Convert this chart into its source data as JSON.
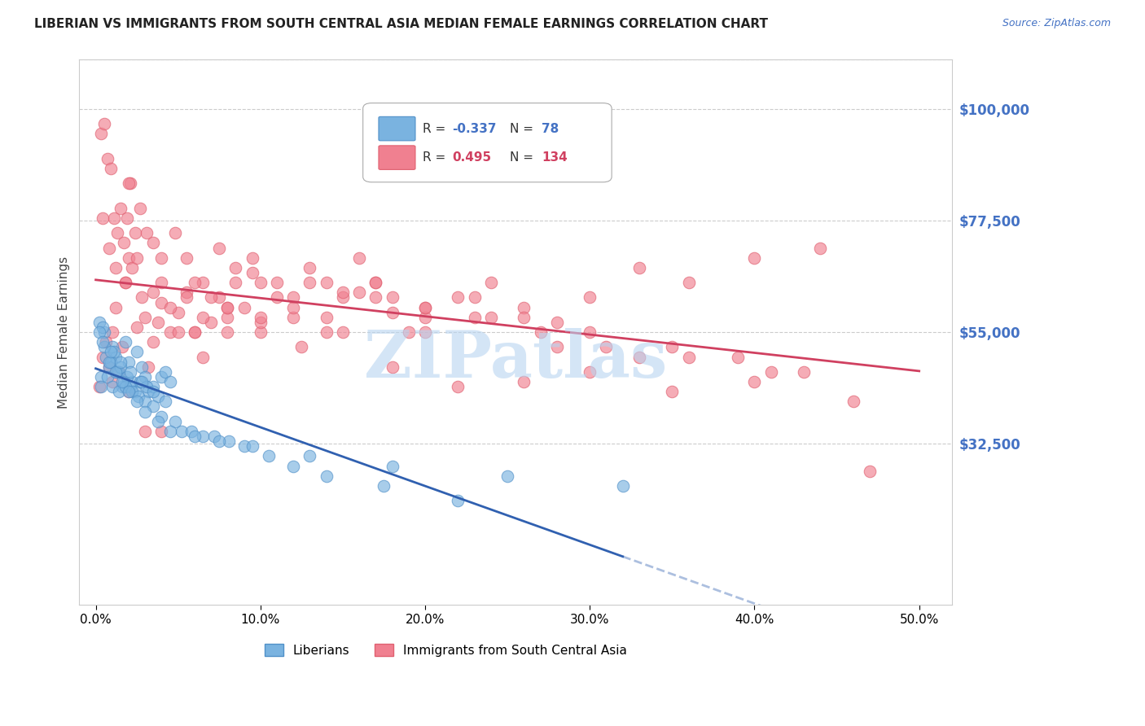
{
  "title": "LIBERIAN VS IMMIGRANTS FROM SOUTH CENTRAL ASIA MEDIAN FEMALE EARNINGS CORRELATION CHART",
  "source": "Source: ZipAtlas.com",
  "xlabel_ticks": [
    "0.0%",
    "10.0%",
    "20.0%",
    "30.0%",
    "40.0%",
    "50.0%"
  ],
  "xlabel_vals": [
    0.0,
    10.0,
    20.0,
    30.0,
    40.0,
    50.0
  ],
  "ylabel": "Median Female Earnings",
  "ytick_labels": [
    "$32,500",
    "$55,000",
    "$77,500",
    "$100,000"
  ],
  "ytick_vals": [
    32500,
    55000,
    77500,
    100000
  ],
  "ymin": 0,
  "ymax": 110000,
  "xmin": -1.0,
  "xmax": 52.0,
  "liberian_color": "#7ab3e0",
  "immigrant_color": "#f08090",
  "liberian_edge": "#5090c8",
  "immigrant_edge": "#e06070",
  "trend_liberian_color": "#3060b0",
  "trend_immigrant_color": "#d04060",
  "watermark": "ZIPatlas",
  "watermark_color": "#b8d4f0",
  "liberian_x": [
    0.3,
    0.5,
    0.8,
    1.0,
    1.2,
    1.4,
    1.6,
    1.8,
    2.0,
    2.2,
    2.5,
    2.8,
    3.0,
    3.2,
    3.5,
    3.8,
    4.0,
    4.2,
    4.5,
    0.2,
    0.4,
    0.6,
    0.9,
    1.1,
    1.3,
    1.5,
    1.7,
    1.9,
    2.1,
    2.4,
    2.7,
    3.1,
    0.3,
    0.7,
    1.0,
    1.4,
    1.8,
    2.2,
    2.6,
    3.0,
    3.5,
    4.0,
    4.8,
    5.2,
    5.8,
    6.5,
    7.2,
    8.1,
    9.0,
    10.5,
    12.0,
    14.0,
    17.5,
    22.0,
    0.2,
    0.5,
    0.8,
    1.2,
    1.6,
    2.0,
    2.5,
    3.0,
    3.8,
    4.5,
    6.0,
    7.5,
    9.5,
    13.0,
    18.0,
    25.0,
    32.0,
    0.4,
    0.9,
    1.5,
    2.1,
    2.8,
    3.5,
    4.2
  ],
  "liberian_y": [
    46000,
    55000,
    48000,
    52000,
    50000,
    47000,
    44000,
    53000,
    49000,
    45000,
    51000,
    48000,
    46000,
    43000,
    44000,
    42000,
    46000,
    47000,
    45000,
    57000,
    56000,
    50000,
    49000,
    51000,
    47000,
    48000,
    45000,
    46000,
    44000,
    43000,
    45000,
    44000,
    44000,
    46000,
    44000,
    43000,
    44000,
    43000,
    42000,
    41000,
    40000,
    38000,
    37000,
    35000,
    35000,
    34000,
    34000,
    33000,
    32000,
    30000,
    28000,
    26000,
    24000,
    21000,
    55000,
    52000,
    49000,
    47000,
    45000,
    43000,
    41000,
    39000,
    37000,
    35000,
    34000,
    33000,
    32000,
    30000,
    28000,
    26000,
    24000,
    53000,
    51000,
    49000,
    47000,
    45000,
    43000,
    41000
  ],
  "immigrant_x": [
    0.2,
    0.4,
    0.6,
    0.8,
    1.0,
    1.2,
    1.4,
    1.6,
    1.8,
    2.0,
    2.2,
    2.5,
    2.8,
    3.0,
    3.2,
    3.5,
    3.8,
    4.0,
    4.5,
    5.0,
    5.5,
    6.0,
    6.5,
    7.0,
    7.5,
    8.0,
    8.5,
    9.0,
    9.5,
    10.0,
    11.0,
    12.0,
    13.0,
    14.0,
    15.0,
    16.0,
    17.0,
    18.0,
    19.0,
    20.0,
    22.0,
    24.0,
    26.0,
    28.0,
    30.0,
    33.0,
    36.0,
    40.0,
    44.0,
    0.3,
    0.5,
    0.7,
    0.9,
    1.1,
    1.3,
    1.5,
    1.7,
    1.9,
    2.1,
    2.4,
    2.7,
    3.1,
    3.5,
    4.0,
    4.8,
    5.5,
    6.5,
    7.5,
    8.5,
    9.5,
    11.0,
    13.0,
    15.0,
    17.0,
    20.0,
    23.0,
    27.0,
    31.0,
    36.0,
    41.0,
    0.4,
    0.8,
    1.2,
    1.8,
    2.5,
    3.5,
    4.5,
    5.5,
    6.5,
    8.0,
    10.0,
    12.5,
    15.0,
    18.0,
    22.0,
    26.0,
    30.0,
    35.0,
    40.0,
    46.0,
    1.0,
    2.0,
    3.0,
    4.0,
    5.0,
    6.0,
    7.0,
    8.0,
    10.0,
    12.0,
    14.0,
    16.0,
    18.0,
    20.0,
    23.0,
    26.0,
    30.0,
    35.0,
    39.0,
    43.0,
    47.0,
    2.0,
    4.0,
    6.0,
    8.0,
    10.0,
    12.0,
    14.0,
    17.0,
    20.0,
    24.0,
    28.0,
    33.0,
    38.0
  ],
  "immigrant_y": [
    44000,
    50000,
    53000,
    48000,
    55000,
    60000,
    47000,
    52000,
    65000,
    70000,
    68000,
    56000,
    62000,
    58000,
    48000,
    53000,
    57000,
    61000,
    55000,
    59000,
    63000,
    55000,
    50000,
    57000,
    62000,
    58000,
    65000,
    60000,
    67000,
    55000,
    62000,
    58000,
    65000,
    55000,
    62000,
    70000,
    65000,
    59000,
    55000,
    58000,
    62000,
    65000,
    60000,
    57000,
    62000,
    68000,
    65000,
    70000,
    72000,
    95000,
    97000,
    90000,
    88000,
    78000,
    75000,
    80000,
    73000,
    78000,
    85000,
    75000,
    80000,
    75000,
    73000,
    65000,
    75000,
    70000,
    65000,
    72000,
    68000,
    70000,
    65000,
    68000,
    63000,
    65000,
    60000,
    58000,
    55000,
    52000,
    50000,
    47000,
    78000,
    72000,
    68000,
    65000,
    70000,
    63000,
    60000,
    62000,
    58000,
    55000,
    57000,
    52000,
    55000,
    48000,
    44000,
    45000,
    47000,
    43000,
    45000,
    41000,
    45000,
    43000,
    35000,
    35000,
    55000,
    55000,
    62000,
    60000,
    58000,
    62000,
    65000,
    63000,
    62000,
    60000,
    62000,
    58000,
    55000,
    52000,
    50000,
    47000,
    27000,
    85000,
    70000,
    65000,
    60000,
    65000,
    60000,
    58000,
    62000,
    55000,
    58000,
    52000,
    50000
  ]
}
